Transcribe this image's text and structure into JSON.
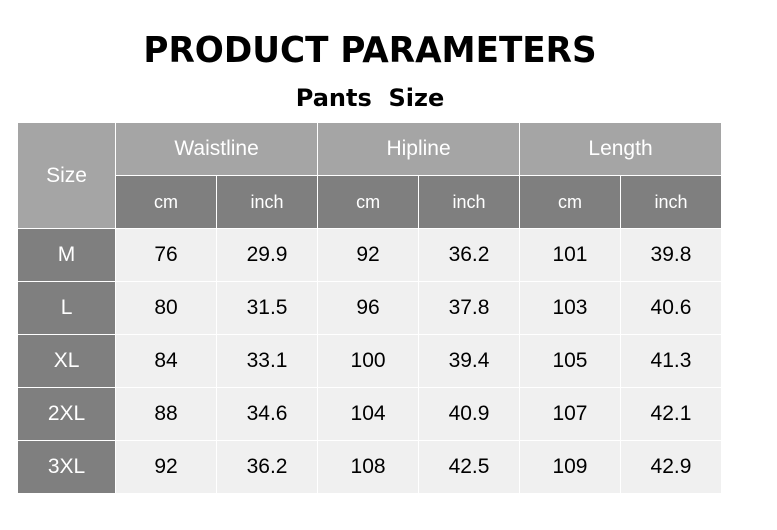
{
  "title": "PRODUCT PARAMETERS",
  "subtitle": "Pants  Size",
  "table": {
    "size_header": "Size",
    "groups": [
      "Waistline",
      "Hipline",
      "Length"
    ],
    "units": [
      "cm",
      "inch",
      "cm",
      "inch",
      "cm",
      "inch"
    ],
    "rows": [
      {
        "size": "M",
        "values": [
          "76",
          "29.9",
          "92",
          "36.2",
          "101",
          "39.8"
        ]
      },
      {
        "size": "L",
        "values": [
          "80",
          "31.5",
          "96",
          "37.8",
          "103",
          "40.6"
        ]
      },
      {
        "size": "XL",
        "values": [
          "84",
          "33.1",
          "100",
          "39.4",
          "105",
          "41.3"
        ]
      },
      {
        "size": "2XL",
        "values": [
          "88",
          "34.6",
          "104",
          "40.9",
          "107",
          "42.1"
        ]
      },
      {
        "size": "3XL",
        "values": [
          "92",
          "36.2",
          "108",
          "42.5",
          "109",
          "42.9"
        ]
      }
    ]
  },
  "colors": {
    "header": "#a5a5a5",
    "subheader": "#7f7f7f",
    "body": "#f0f0f0"
  }
}
